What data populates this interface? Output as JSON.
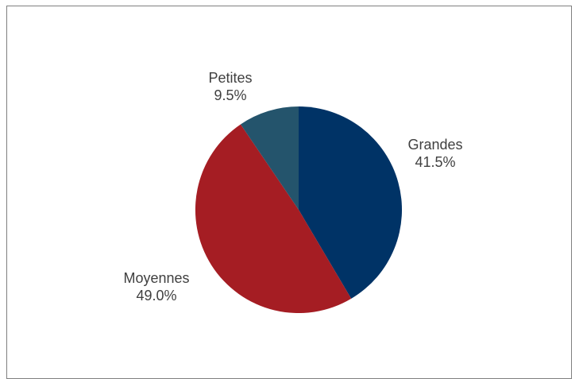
{
  "chart_data": {
    "type": "pie",
    "categories": [
      "Grandes",
      "Moyennes",
      "Petites"
    ],
    "values": [
      41.5,
      49.0,
      9.5
    ],
    "value_labels": [
      "41.5%",
      "49.0%",
      "9.5%"
    ],
    "colors": [
      "#003366",
      "#A51D23",
      "#24546C"
    ],
    "legend": "none",
    "start_angle_deg": 0,
    "direction": "clockwise"
  }
}
